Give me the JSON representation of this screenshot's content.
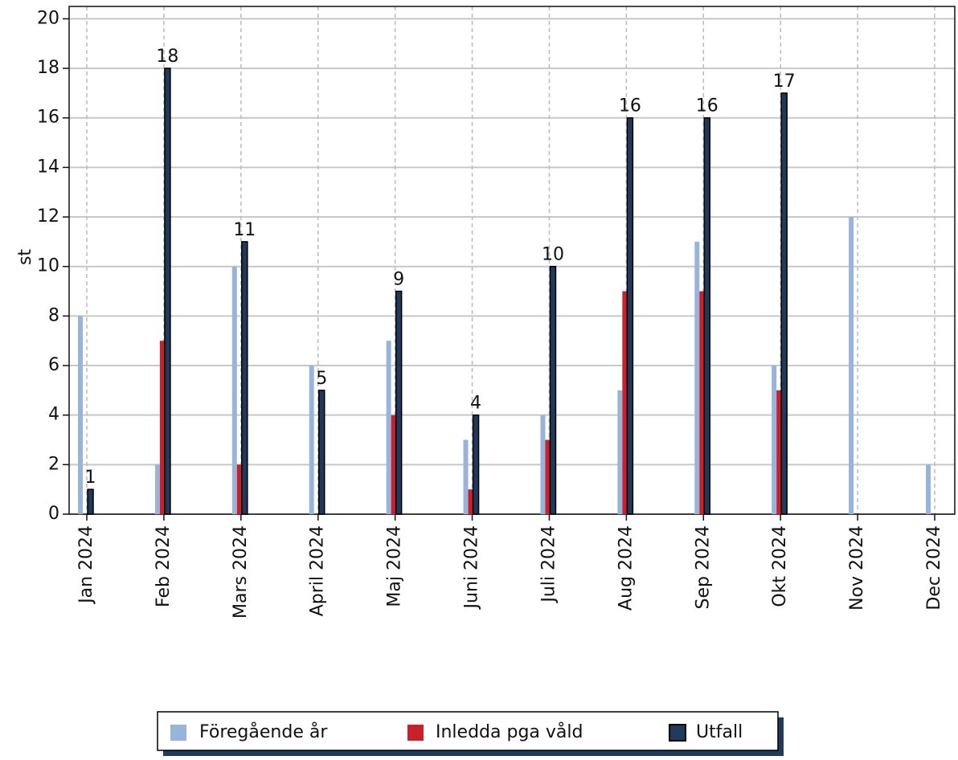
{
  "chart_data": {
    "type": "bar",
    "y_label": "st",
    "categories": [
      "Jan 2024",
      "Feb 2024",
      "Mars 2024",
      "April 2024",
      "Maj 2024",
      "Juni 2024",
      "Juli 2024",
      "Aug 2024",
      "Sep 2024",
      "Okt 2024",
      "Nov 2024",
      "Dec 2024"
    ],
    "series": [
      {
        "name": "Föregående år",
        "color": "#98b4da",
        "values": [
          8,
          2,
          10,
          6,
          7,
          3,
          4,
          5,
          11,
          6,
          12,
          2
        ]
      },
      {
        "name": "Inledda pga våld",
        "color": "#c8202c",
        "values": [
          0,
          7,
          2,
          0,
          4,
          1,
          3,
          9,
          9,
          5,
          null,
          null
        ]
      },
      {
        "name": "Utfall",
        "color": "#1f3a5a",
        "values": [
          1,
          18,
          11,
          5,
          9,
          4,
          10,
          16,
          16,
          17,
          null,
          null
        ]
      }
    ],
    "ylim": [
      0,
      20.5
    ],
    "yticks": [
      0,
      2,
      4,
      6,
      8,
      10,
      12,
      14,
      16,
      18,
      20
    ],
    "grid": true,
    "legend": "bottom"
  }
}
